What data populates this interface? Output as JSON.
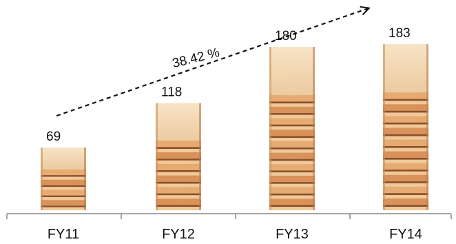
{
  "chart_data": {
    "type": "bar",
    "title": "",
    "xlabel": "",
    "ylabel": "",
    "categories": [
      "FY11",
      "FY12",
      "FY13",
      "FY14"
    ],
    "values": [
      69,
      118,
      180,
      183
    ],
    "ylim": [
      0,
      190
    ],
    "grid": false,
    "bar_style": "stacked-plywood-image",
    "colors": {
      "wood_light": "#f2d3a8",
      "wood_mid": "#e2a86f",
      "wood_dark": "#b86b3c",
      "edge": "#8a4f2a",
      "axis": "#888888",
      "text": "#111111"
    },
    "annotations": [
      {
        "type": "trend-arrow",
        "label": "38.42 %",
        "style": "dashed"
      }
    ]
  }
}
